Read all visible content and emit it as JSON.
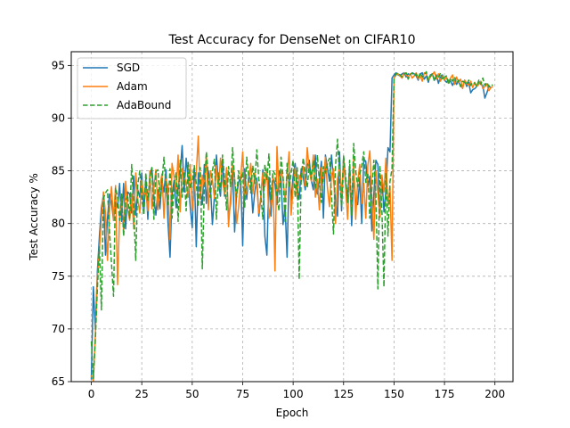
{
  "chart_data": {
    "type": "line",
    "title": "Test Accuracy for DenseNet on CIFAR10",
    "xlabel": "Epoch",
    "ylabel": "Test Accuracy %",
    "xlim": [
      -9.95,
      208.95
    ],
    "ylim": [
      65,
      96.3
    ],
    "xticks": [
      0,
      25,
      50,
      75,
      100,
      125,
      150,
      175,
      200
    ],
    "yticks": [
      65,
      70,
      75,
      80,
      85,
      90,
      95
    ],
    "grid": true,
    "legend_position": "top-left",
    "series": [
      {
        "name": "SGD",
        "color": "#1f77b4",
        "dash": "solid",
        "values": [
          65.2,
          74.0,
          70.0,
          75.5,
          78.8,
          81.5,
          82.7,
          77.0,
          80.5,
          82.8,
          82.0,
          80.3,
          82.2,
          81.5,
          83.8,
          80.2,
          83.8,
          79.5,
          83.0,
          82.8,
          81.0,
          84.5,
          80.8,
          83.2,
          82.5,
          84.8,
          81.0,
          84.3,
          80.4,
          84.6,
          85.3,
          82.5,
          80.8,
          83.2,
          81.4,
          84.0,
          83.0,
          85.1,
          80.0,
          76.8,
          82.7,
          84.1,
          81.5,
          83.5,
          84.8,
          87.4,
          83.0,
          86.2,
          84.3,
          81.6,
          79.6,
          85.3,
          77.8,
          84.8,
          83.3,
          81.8,
          85.6,
          81.9,
          85.0,
          83.6,
          79.9,
          82.6,
          86.5,
          83.8,
          82.6,
          86.1,
          82.6,
          84.8,
          80.5,
          81.9,
          85.3,
          79.2,
          82.8,
          83.9,
          84.5,
          77.9,
          85.2,
          82.3,
          84.6,
          84.2,
          81.0,
          83.0,
          84.3,
          80.7,
          82.4,
          85.1,
          78.8,
          77.0,
          84.4,
          80.7,
          84.3,
          83.8,
          81.8,
          85.0,
          84.2,
          79.9,
          81.7,
          76.8,
          84.8,
          82.2,
          84.5,
          85.7,
          83.5,
          82.3,
          85.2,
          84.4,
          83.2,
          85.5,
          86.0,
          84.1,
          83.2,
          86.5,
          82.8,
          84.1,
          85.9,
          80.5,
          86.5,
          85.3,
          84.0,
          86.5,
          84.2,
          82.2,
          80.7,
          86.8,
          81.2,
          86.3,
          84.0,
          82.4,
          85.4,
          79.8,
          84.6,
          82.0,
          81.8,
          84.2,
          80.0,
          86.1,
          85.9,
          83.5,
          84.5,
          79.3,
          82.8,
          86.0,
          85.6,
          80.6,
          84.3,
          81.1,
          83.2,
          87.2,
          86.8,
          93.8,
          94.1,
          94.3,
          94.1,
          94.0,
          94.2,
          94.3,
          93.9,
          94.2,
          94.1,
          94.3,
          94.2,
          94.0,
          93.6,
          94.2,
          94.3,
          93.7,
          94.0,
          93.4,
          94.1,
          94.2,
          93.6,
          94.1,
          93.3,
          93.9,
          94.1,
          93.6,
          93.4,
          93.6,
          93.5,
          93.1,
          93.6,
          93.2,
          93.5,
          93.0,
          92.9,
          93.6,
          93.0,
          93.4,
          92.4,
          92.7,
          92.8,
          93.0,
          93.5,
          93.2,
          93.1,
          91.9,
          92.4,
          93.0,
          92.9
        ]
      },
      {
        "name": "Adam",
        "color": "#ff7f0e",
        "dash": "solid",
        "values": [
          65.6,
          65.1,
          69.5,
          74.9,
          77.5,
          80.5,
          83.0,
          81.0,
          76.5,
          81.2,
          83.5,
          80.3,
          83.6,
          74.2,
          80.6,
          82.5,
          79.2,
          84.0,
          81.4,
          80.3,
          82.8,
          79.5,
          84.8,
          82.3,
          81.0,
          84.1,
          82.6,
          83.3,
          81.2,
          85.0,
          81.4,
          83.5,
          85.1,
          81.3,
          83.6,
          84.7,
          80.5,
          84.2,
          83.5,
          78.5,
          85.7,
          84.4,
          82.9,
          86.5,
          81.1,
          85.2,
          84.7,
          83.8,
          82.5,
          85.6,
          81.2,
          83.3,
          84.8,
          88.3,
          82.3,
          84.6,
          83.5,
          86.5,
          81.3,
          85.0,
          84.1,
          82.4,
          85.5,
          83.2,
          86.2,
          84.0,
          82.8,
          85.3,
          79.7,
          82.6,
          85.7,
          84.4,
          80.0,
          81.6,
          84.3,
          86.8,
          82.5,
          83.1,
          84.0,
          85.7,
          82.8,
          84.8,
          83.5,
          81.0,
          82.6,
          84.8,
          83.5,
          85.2,
          80.5,
          82.0,
          84.6,
          75.5,
          87.3,
          83.0,
          85.0,
          84.2,
          82.2,
          84.5,
          86.8,
          80.8,
          83.5,
          85.3,
          82.4,
          84.6,
          84.0,
          85.4,
          83.6,
          87.2,
          85.0,
          84.0,
          86.5,
          82.5,
          84.2,
          81.3,
          85.3,
          84.0,
          86.3,
          83.4,
          81.6,
          84.6,
          85.2,
          80.0,
          84.3,
          85.4,
          82.2,
          86.1,
          83.5,
          80.4,
          84.7,
          81.4,
          86.1,
          80.4,
          84.0,
          85.6,
          81.9,
          83.8,
          80.5,
          85.5,
          86.9,
          82.5,
          78.5,
          85.0,
          82.8,
          80.6,
          84.6,
          83.0,
          86.2,
          81.7,
          83.5,
          76.5,
          93.8,
          94.1,
          94.2,
          94.0,
          93.8,
          94.3,
          94.1,
          93.9,
          94.2,
          93.8,
          94.0,
          94.3,
          93.7,
          94.0,
          93.5,
          94.3,
          94.2,
          93.6,
          93.9,
          94.1,
          94.4,
          93.7,
          94.2,
          93.5,
          94.0,
          93.6,
          93.9,
          93.3,
          93.8,
          94.1,
          93.2,
          93.9,
          93.4,
          93.7,
          92.8,
          93.6,
          93.3,
          93.1,
          93.5,
          92.9,
          93.4,
          93.0,
          93.2,
          93.5,
          92.8,
          93.0,
          93.2,
          92.6,
          92.9,
          93.0
        ]
      },
      {
        "name": "AdaBound",
        "color": "#2ca02c",
        "dash": "dashed",
        "values": [
          68.8,
          65.3,
          69.0,
          73.8,
          77.8,
          71.8,
          82.4,
          82.9,
          83.2,
          79.3,
          76.2,
          73.1,
          83.4,
          82.5,
          80.3,
          82.8,
          78.8,
          82.2,
          82.7,
          80.5,
          85.6,
          81.6,
          76.5,
          83.7,
          85.0,
          82.5,
          80.8,
          84.8,
          82.2,
          84.3,
          85.3,
          80.4,
          84.9,
          85.1,
          82.3,
          84.0,
          86.3,
          83.4,
          81.8,
          85.2,
          80.5,
          83.6,
          84.8,
          80.2,
          86.0,
          82.5,
          84.9,
          81.2,
          85.8,
          83.3,
          84.0,
          85.5,
          83.8,
          81.6,
          85.3,
          75.7,
          83.4,
          86.8,
          84.5,
          82.5,
          85.0,
          86.1,
          80.4,
          84.8,
          83.0,
          86.5,
          84.3,
          81.3,
          85.4,
          83.5,
          87.2,
          84.2,
          82.5,
          85.0,
          83.7,
          84.9,
          81.5,
          86.3,
          84.4,
          82.9,
          85.5,
          83.8,
          87.0,
          84.2,
          82.7,
          80.4,
          85.6,
          84.1,
          86.6,
          82.3,
          85.0,
          84.7,
          82.6,
          81.2,
          86.3,
          84.5,
          80.2,
          85.7,
          83.4,
          84.8,
          86.0,
          82.5,
          85.3,
          74.7,
          84.4,
          86.2,
          84.8,
          83.4,
          85.6,
          84.2,
          86.0,
          83.3,
          86.5,
          84.0,
          82.0,
          85.4,
          84.8,
          85.7,
          86.2,
          82.7,
          79.0,
          85.5,
          88.0,
          84.3,
          81.6,
          86.4,
          84.5,
          82.0,
          86.0,
          80.8,
          87.6,
          85.0,
          83.5,
          84.7,
          85.5,
          86.8,
          83.9,
          84.8,
          80.5,
          83.2,
          86.0,
          82.8,
          73.8,
          85.5,
          81.2,
          74.0,
          84.8,
          78.8,
          84.0,
          85.2,
          93.8,
          94.2,
          94.3,
          94.1,
          93.9,
          94.2,
          94.3,
          93.7,
          94.1,
          94.3,
          94.0,
          94.2,
          93.8,
          94.3,
          93.9,
          94.1,
          94.4,
          93.6,
          94.0,
          94.2,
          93.5,
          94.0,
          93.8,
          94.3,
          93.6,
          93.9,
          94.0,
          93.2,
          93.8,
          93.5,
          93.9,
          93.3,
          93.6,
          93.0,
          93.5,
          93.4,
          93.2,
          93.6,
          93.1,
          93.4,
          93.3,
          93.0,
          93.6,
          93.2,
          93.8,
          93.1,
          93.4,
          93.0,
          93.2,
          93.1
        ]
      }
    ]
  }
}
